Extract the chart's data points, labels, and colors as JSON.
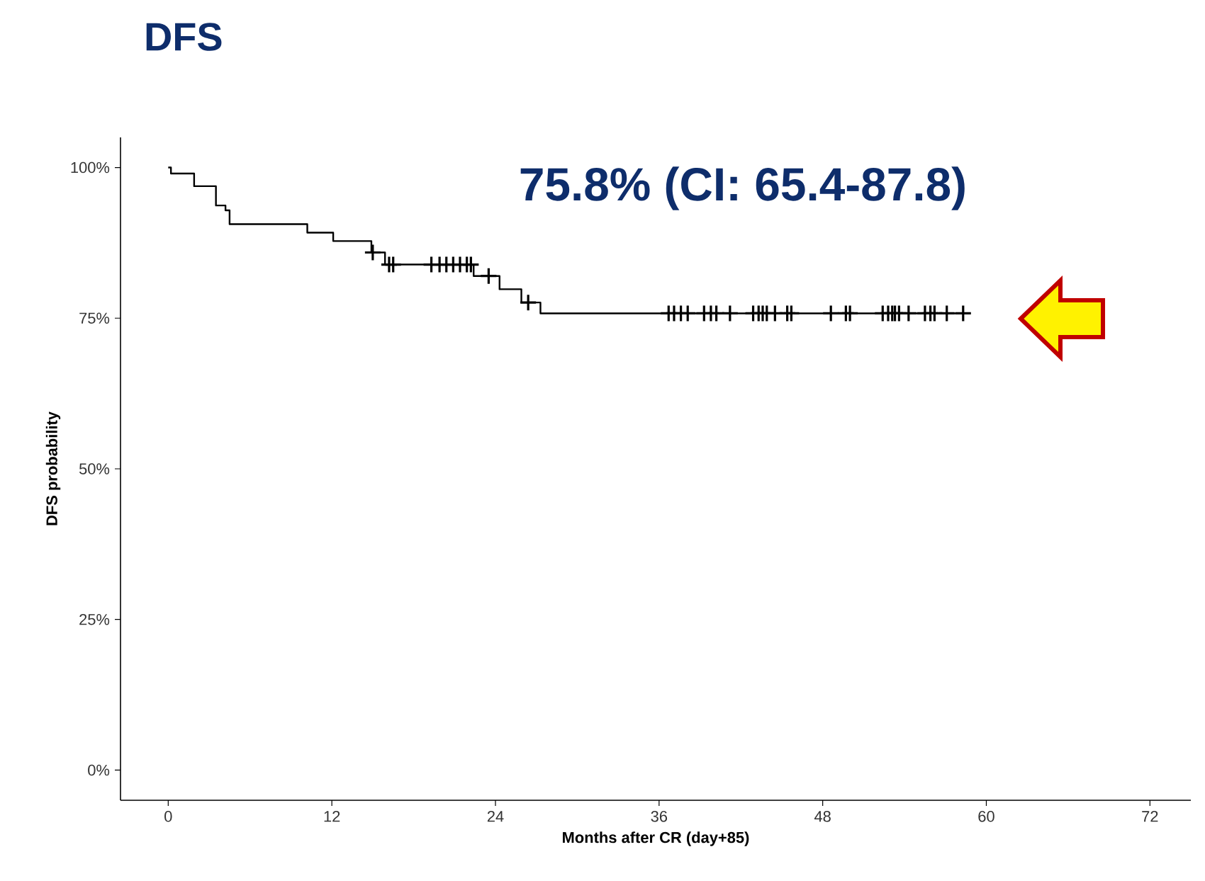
{
  "chart_data": {
    "type": "step",
    "title": "DFS",
    "xlabel": "Months after CR (day+85)",
    "ylabel": "DFS probability",
    "annotations": [
      "75.8% (CI: 65.4-87.8)"
    ],
    "xlim": [
      -3.5,
      75
    ],
    "ylim": [
      -5,
      105
    ],
    "xticks": [
      0,
      12,
      24,
      36,
      48,
      60,
      72
    ],
    "yticks": [
      {
        "value": 0,
        "label": "0%"
      },
      {
        "value": 25,
        "label": "25%"
      },
      {
        "value": 50,
        "label": "50%"
      },
      {
        "value": 75,
        "label": "75%"
      },
      {
        "value": 100,
        "label": "100%"
      }
    ],
    "grid": false,
    "series": [
      {
        "color": "#000000",
        "marker": "none",
        "x": [
          0,
          0.2,
          1.9,
          3.5,
          4.2,
          4.5,
          10.2,
          12.1,
          14.9,
          15.9,
          22.4,
          24.3,
          25.9,
          27.3,
          58.6
        ],
        "values": [
          100,
          99,
          96.9,
          93.7,
          92.9,
          90.6,
          89.2,
          87.8,
          85.9,
          83.9,
          82.0,
          79.8,
          77.6,
          75.8,
          75.8
        ]
      },
      {
        "type": "scatter",
        "color": "#000000",
        "marker": "cross",
        "x": [
          15.0,
          16.2,
          16.5,
          19.3,
          19.9,
          20.4,
          20.9,
          21.4,
          21.9,
          22.2,
          23.5,
          26.4,
          36.7,
          37.1,
          37.6,
          38.1,
          39.3,
          39.8,
          40.2,
          41.2,
          42.9,
          43.3,
          43.6,
          43.9,
          44.5,
          45.4,
          45.7,
          48.6,
          49.7,
          50.0,
          52.4,
          52.8,
          53.1,
          53.3,
          53.6,
          54.3,
          55.5,
          55.9,
          56.2,
          57.1,
          58.3
        ],
        "values": [
          85.9,
          83.9,
          83.9,
          83.9,
          83.9,
          83.9,
          83.9,
          83.9,
          83.9,
          83.9,
          82.0,
          77.6,
          75.8,
          75.8,
          75.8,
          75.8,
          75.8,
          75.8,
          75.8,
          75.8,
          75.8,
          75.8,
          75.8,
          75.8,
          75.8,
          75.8,
          75.8,
          75.8,
          75.8,
          75.8,
          75.8,
          75.8,
          75.8,
          75.8,
          75.8,
          75.8,
          75.8,
          75.8,
          75.8,
          75.8,
          75.8
        ]
      }
    ]
  }
}
